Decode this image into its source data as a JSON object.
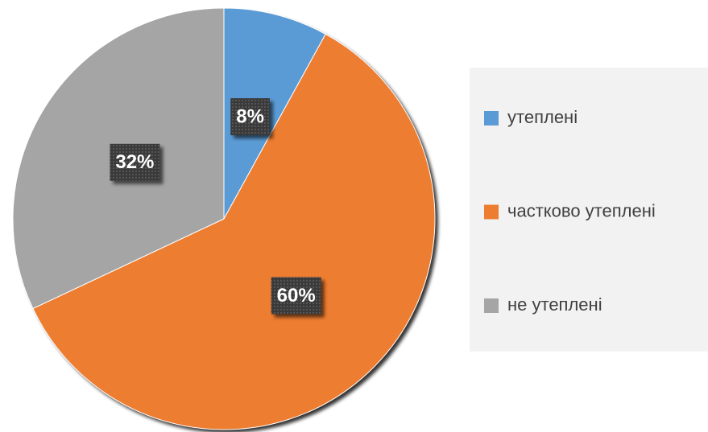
{
  "chart_data": {
    "type": "pie",
    "categories": [
      "утеплені",
      "частково утеплені",
      "не утеплені"
    ],
    "values": [
      8,
      60,
      32
    ],
    "value_labels": [
      "8%",
      "60%",
      "32%"
    ],
    "colors": [
      "#5b9bd5",
      "#ed7d31",
      "#a5a5a5"
    ],
    "legend": "right"
  }
}
